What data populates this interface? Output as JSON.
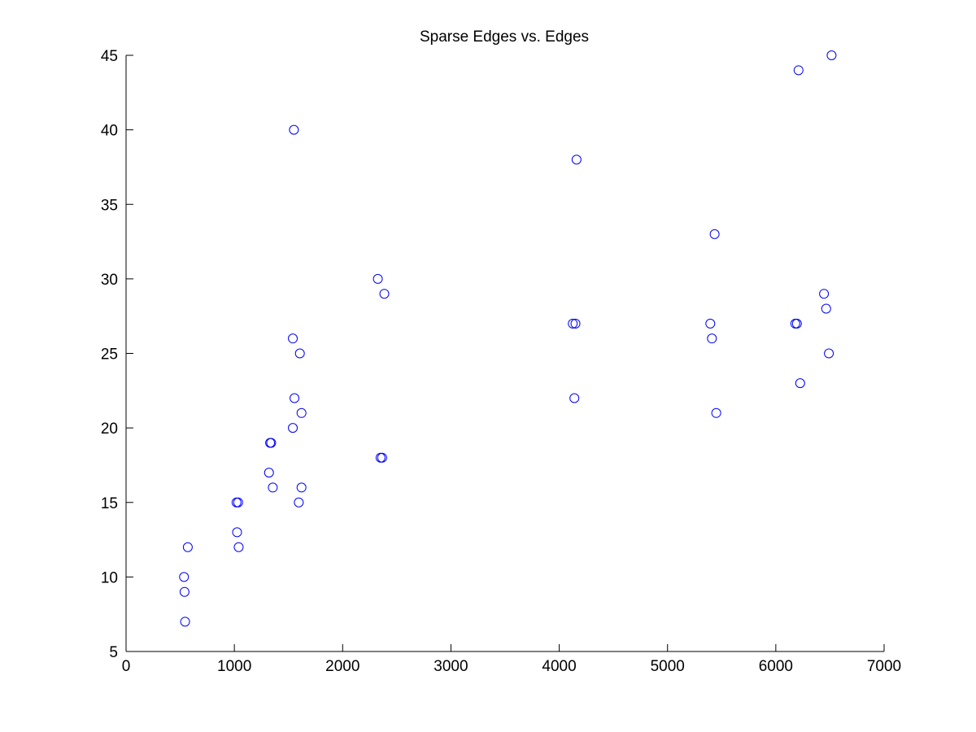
{
  "chart_data": {
    "type": "scatter",
    "title": "Sparse Edges vs. Edges",
    "xlabel": "",
    "ylabel": "",
    "xlim": [
      0,
      7000
    ],
    "ylim": [
      5,
      45
    ],
    "xticks": [
      0,
      1000,
      2000,
      3000,
      4000,
      5000,
      6000,
      7000
    ],
    "yticks": [
      5,
      10,
      15,
      20,
      25,
      30,
      35,
      40,
      45
    ],
    "xtick_labels": [
      "0",
      "1000",
      "2000",
      "3000",
      "4000",
      "5000",
      "6000",
      "7000"
    ],
    "ytick_labels": [
      "5",
      "10",
      "15",
      "20",
      "25",
      "30",
      "35",
      "40",
      "45"
    ],
    "grid": false,
    "legend": "none",
    "marker": "open-circle",
    "marker_color": "#0000ff",
    "series": [
      {
        "points": [
          [
            545,
            7
          ],
          [
            540,
            9
          ],
          [
            535,
            10
          ],
          [
            570,
            12
          ],
          [
            1040,
            12
          ],
          [
            1025,
            13
          ],
          [
            1020,
            15
          ],
          [
            1035,
            15
          ],
          [
            1320,
            17
          ],
          [
            1355,
            16
          ],
          [
            1330,
            19
          ],
          [
            1340,
            19
          ],
          [
            1540,
            20
          ],
          [
            1555,
            22
          ],
          [
            1620,
            21
          ],
          [
            1605,
            25
          ],
          [
            1540,
            26
          ],
          [
            1550,
            40
          ],
          [
            1595,
            15
          ],
          [
            1620,
            16
          ],
          [
            2350,
            18
          ],
          [
            2365,
            18
          ],
          [
            2325,
            30
          ],
          [
            2385,
            29
          ],
          [
            4125,
            27
          ],
          [
            4150,
            27
          ],
          [
            4140,
            22
          ],
          [
            4160,
            38
          ],
          [
            5395,
            27
          ],
          [
            5410,
            26
          ],
          [
            5450,
            21
          ],
          [
            5435,
            33
          ],
          [
            6180,
            27
          ],
          [
            6195,
            27
          ],
          [
            6225,
            23
          ],
          [
            6210,
            44
          ],
          [
            6445,
            29
          ],
          [
            6465,
            28
          ],
          [
            6490,
            25
          ],
          [
            6515,
            45
          ]
        ]
      }
    ]
  }
}
